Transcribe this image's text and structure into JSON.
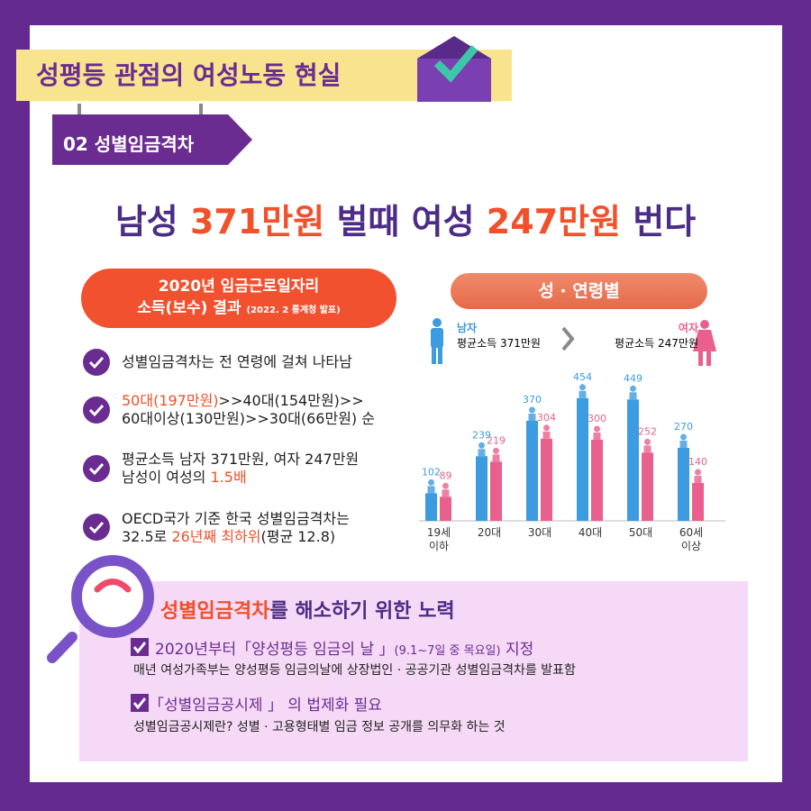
{
  "header": {
    "title": "성평등 관점의 여성노동 현실",
    "section": "02 성별임금격차"
  },
  "headline": [
    "남성 ",
    "371만원",
    " 벌때 여성 ",
    "247만원",
    " 번다"
  ],
  "summary": {
    "title": "2020년 임금근로일자리",
    "subtitle": "소득(보수) 결과",
    "source": "(2022. 2 통계청 발표)",
    "items": [
      [
        "성별임금격차는 전 연령에 걸쳐 나타남"
      ],
      [
        "50대(197만원)",
        ">>40대(154만원)>>",
        "60대이상(130만원)>>30대(66만원) 순"
      ],
      [
        "평균소득 남자 371만원, 여자 247만원",
        "남성이 여성의 ",
        "1.5배"
      ],
      [
        "OECD국가 기준 한국 성별임금격차는",
        "32.5로 ",
        "26년째 최하위",
        "(평균 12.8)"
      ]
    ]
  },
  "chart_data": {
    "type": "bar",
    "title": "성 · 연령별",
    "categories": [
      "19세\n이하",
      "20대",
      "30대",
      "40대",
      "50대",
      "60세\n이상"
    ],
    "series": [
      {
        "name": "남자",
        "note": "평균소득 371만원",
        "color": "#3d9be0",
        "values": [
          102,
          239,
          370,
          454,
          449,
          270
        ]
      },
      {
        "name": "여자",
        "note": "평균소득 247만원",
        "color": "#e9608f",
        "values": [
          89,
          219,
          304,
          300,
          252,
          140
        ]
      }
    ],
    "ylim": [
      0,
      500
    ]
  },
  "efforts": {
    "title": [
      "성별임금격차",
      "를 해소하기 위한 노력"
    ],
    "items": [
      {
        "heading": [
          "2020년부터「양성평등 임금의 날 」",
          "(9.1~7일 중 목요일)",
          " 지정"
        ],
        "desc": "매년 여성가족부는 양성평등 임금의날에 상장법인 · 공공기관 성별임금격차를 발표함"
      },
      {
        "heading": [
          "「성별임금공시제 」 의 법제화 필요"
        ],
        "desc": "성별임금공시제란? 성별 · 고용형태별 임금 정보 공개를 의무화 하는 것"
      }
    ]
  }
}
